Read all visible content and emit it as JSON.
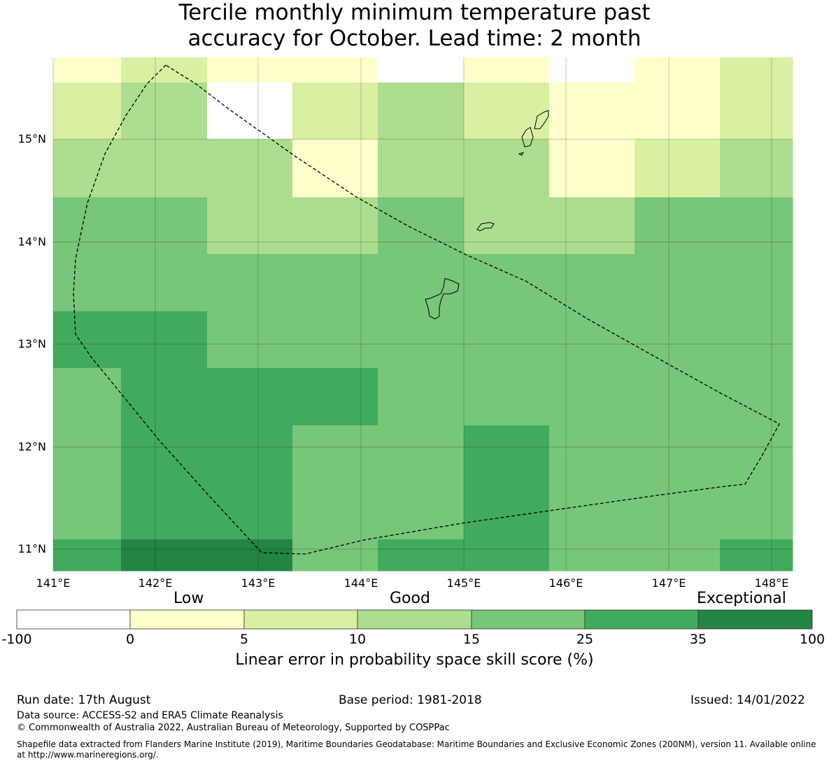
{
  "title_lines": [
    "Tercile monthly minimum temperature past",
    "accuracy for October. Lead time: 2 month"
  ],
  "map": {
    "lon_labels": [
      "141°E",
      "142°E",
      "143°E",
      "144°E",
      "145°E",
      "146°E",
      "147°E",
      "148°E"
    ],
    "lat_labels": [
      "15°N",
      "14°N",
      "13°N",
      "12°N",
      "11°N"
    ],
    "categories": [
      {
        "label": "-100 to 0",
        "color": "#ffffff"
      },
      {
        "label": "0 to 5",
        "color": "#ffffcc"
      },
      {
        "label": "5 to 10",
        "color": "#d9f0a3"
      },
      {
        "label": "10 to 15",
        "color": "#addd8e"
      },
      {
        "label": "15 to 25",
        "color": "#78c679"
      },
      {
        "label": "25 to 35",
        "color": "#41ab5d"
      },
      {
        "label": "35 to 100",
        "color": "#238443"
      }
    ],
    "grid_rows": [
      [
        1,
        2,
        1,
        1,
        0,
        1,
        0,
        1,
        2
      ],
      [
        2,
        3,
        0,
        2,
        3,
        2,
        1,
        1,
        2
      ],
      [
        3,
        3,
        3,
        1,
        3,
        3,
        1,
        2,
        3
      ],
      [
        4,
        4,
        3,
        3,
        4,
        3,
        3,
        4,
        4
      ],
      [
        4,
        4,
        4,
        4,
        4,
        4,
        4,
        4,
        4
      ],
      [
        5,
        5,
        4,
        4,
        4,
        4,
        4,
        4,
        4
      ],
      [
        4,
        5,
        5,
        5,
        4,
        4,
        4,
        4,
        4
      ],
      [
        4,
        5,
        5,
        4,
        4,
        5,
        4,
        4,
        4
      ],
      [
        4,
        5,
        5,
        4,
        4,
        5,
        4,
        4,
        4
      ],
      [
        5,
        6,
        6,
        4,
        5,
        5,
        4,
        4,
        5
      ]
    ]
  },
  "colorbar": {
    "words": [
      "Low",
      "Good",
      "Exceptional"
    ],
    "ticks": [
      "-100",
      "0",
      "5",
      "10",
      "15",
      "25",
      "35",
      "100"
    ],
    "title": "Linear error in probability space skill score (%)"
  },
  "footer": {
    "run_date": "Run date: 17th August",
    "base_period": "Base period: 1981-2018",
    "issued": "Issued: 14/01/2022",
    "data_source": "Data source: ACCESS-S2 and ERA5 Climate Reanalysis",
    "copyright": "© Commonwealth of Australia 2022, Australian Bureau of Meteorology, Supported by COSPPac",
    "shapefile_line1": "Shapefile data extracted from Flanders Marine Institute (2019), Maritime Boundaries Geodatabase: Maritime Boundaries and Exclusive Economic Zones (200NM), version 11. Available online",
    "shapefile_line2": "at http://www.marineregions.org/."
  }
}
